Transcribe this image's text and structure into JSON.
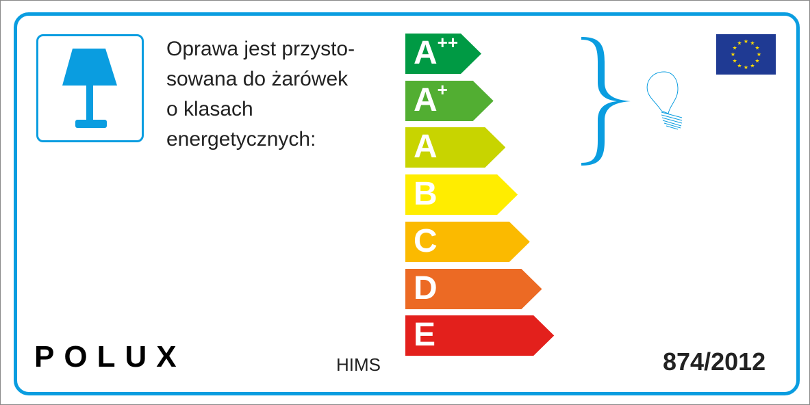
{
  "description_lines": [
    "Oprawa jest przysto-",
    "sowana do żarówek",
    "o klasach",
    "energetycznych:"
  ],
  "classes": [
    {
      "letter": "A",
      "sup": "++",
      "color": "#009a44"
    },
    {
      "letter": "A",
      "sup": "+",
      "color": "#52ae32"
    },
    {
      "letter": "A",
      "sup": "",
      "color": "#c8d400"
    },
    {
      "letter": "B",
      "sup": "",
      "color": "#ffed00"
    },
    {
      "letter": "C",
      "sup": "",
      "color": "#fbba00"
    },
    {
      "letter": "D",
      "sup": "",
      "color": "#ec6a24"
    },
    {
      "letter": "E",
      "sup": "",
      "color": "#e3201c"
    }
  ],
  "compatible_classes": [
    "A++",
    "A+",
    "A"
  ],
  "brand": "POLUX",
  "model": "HIMS",
  "regulation": "874/2012",
  "accent_color": "#0a9de0",
  "icons": [
    "table-lamp-icon",
    "light-bulb-icon",
    "eu-flag-icon",
    "curly-brace-icon"
  ]
}
